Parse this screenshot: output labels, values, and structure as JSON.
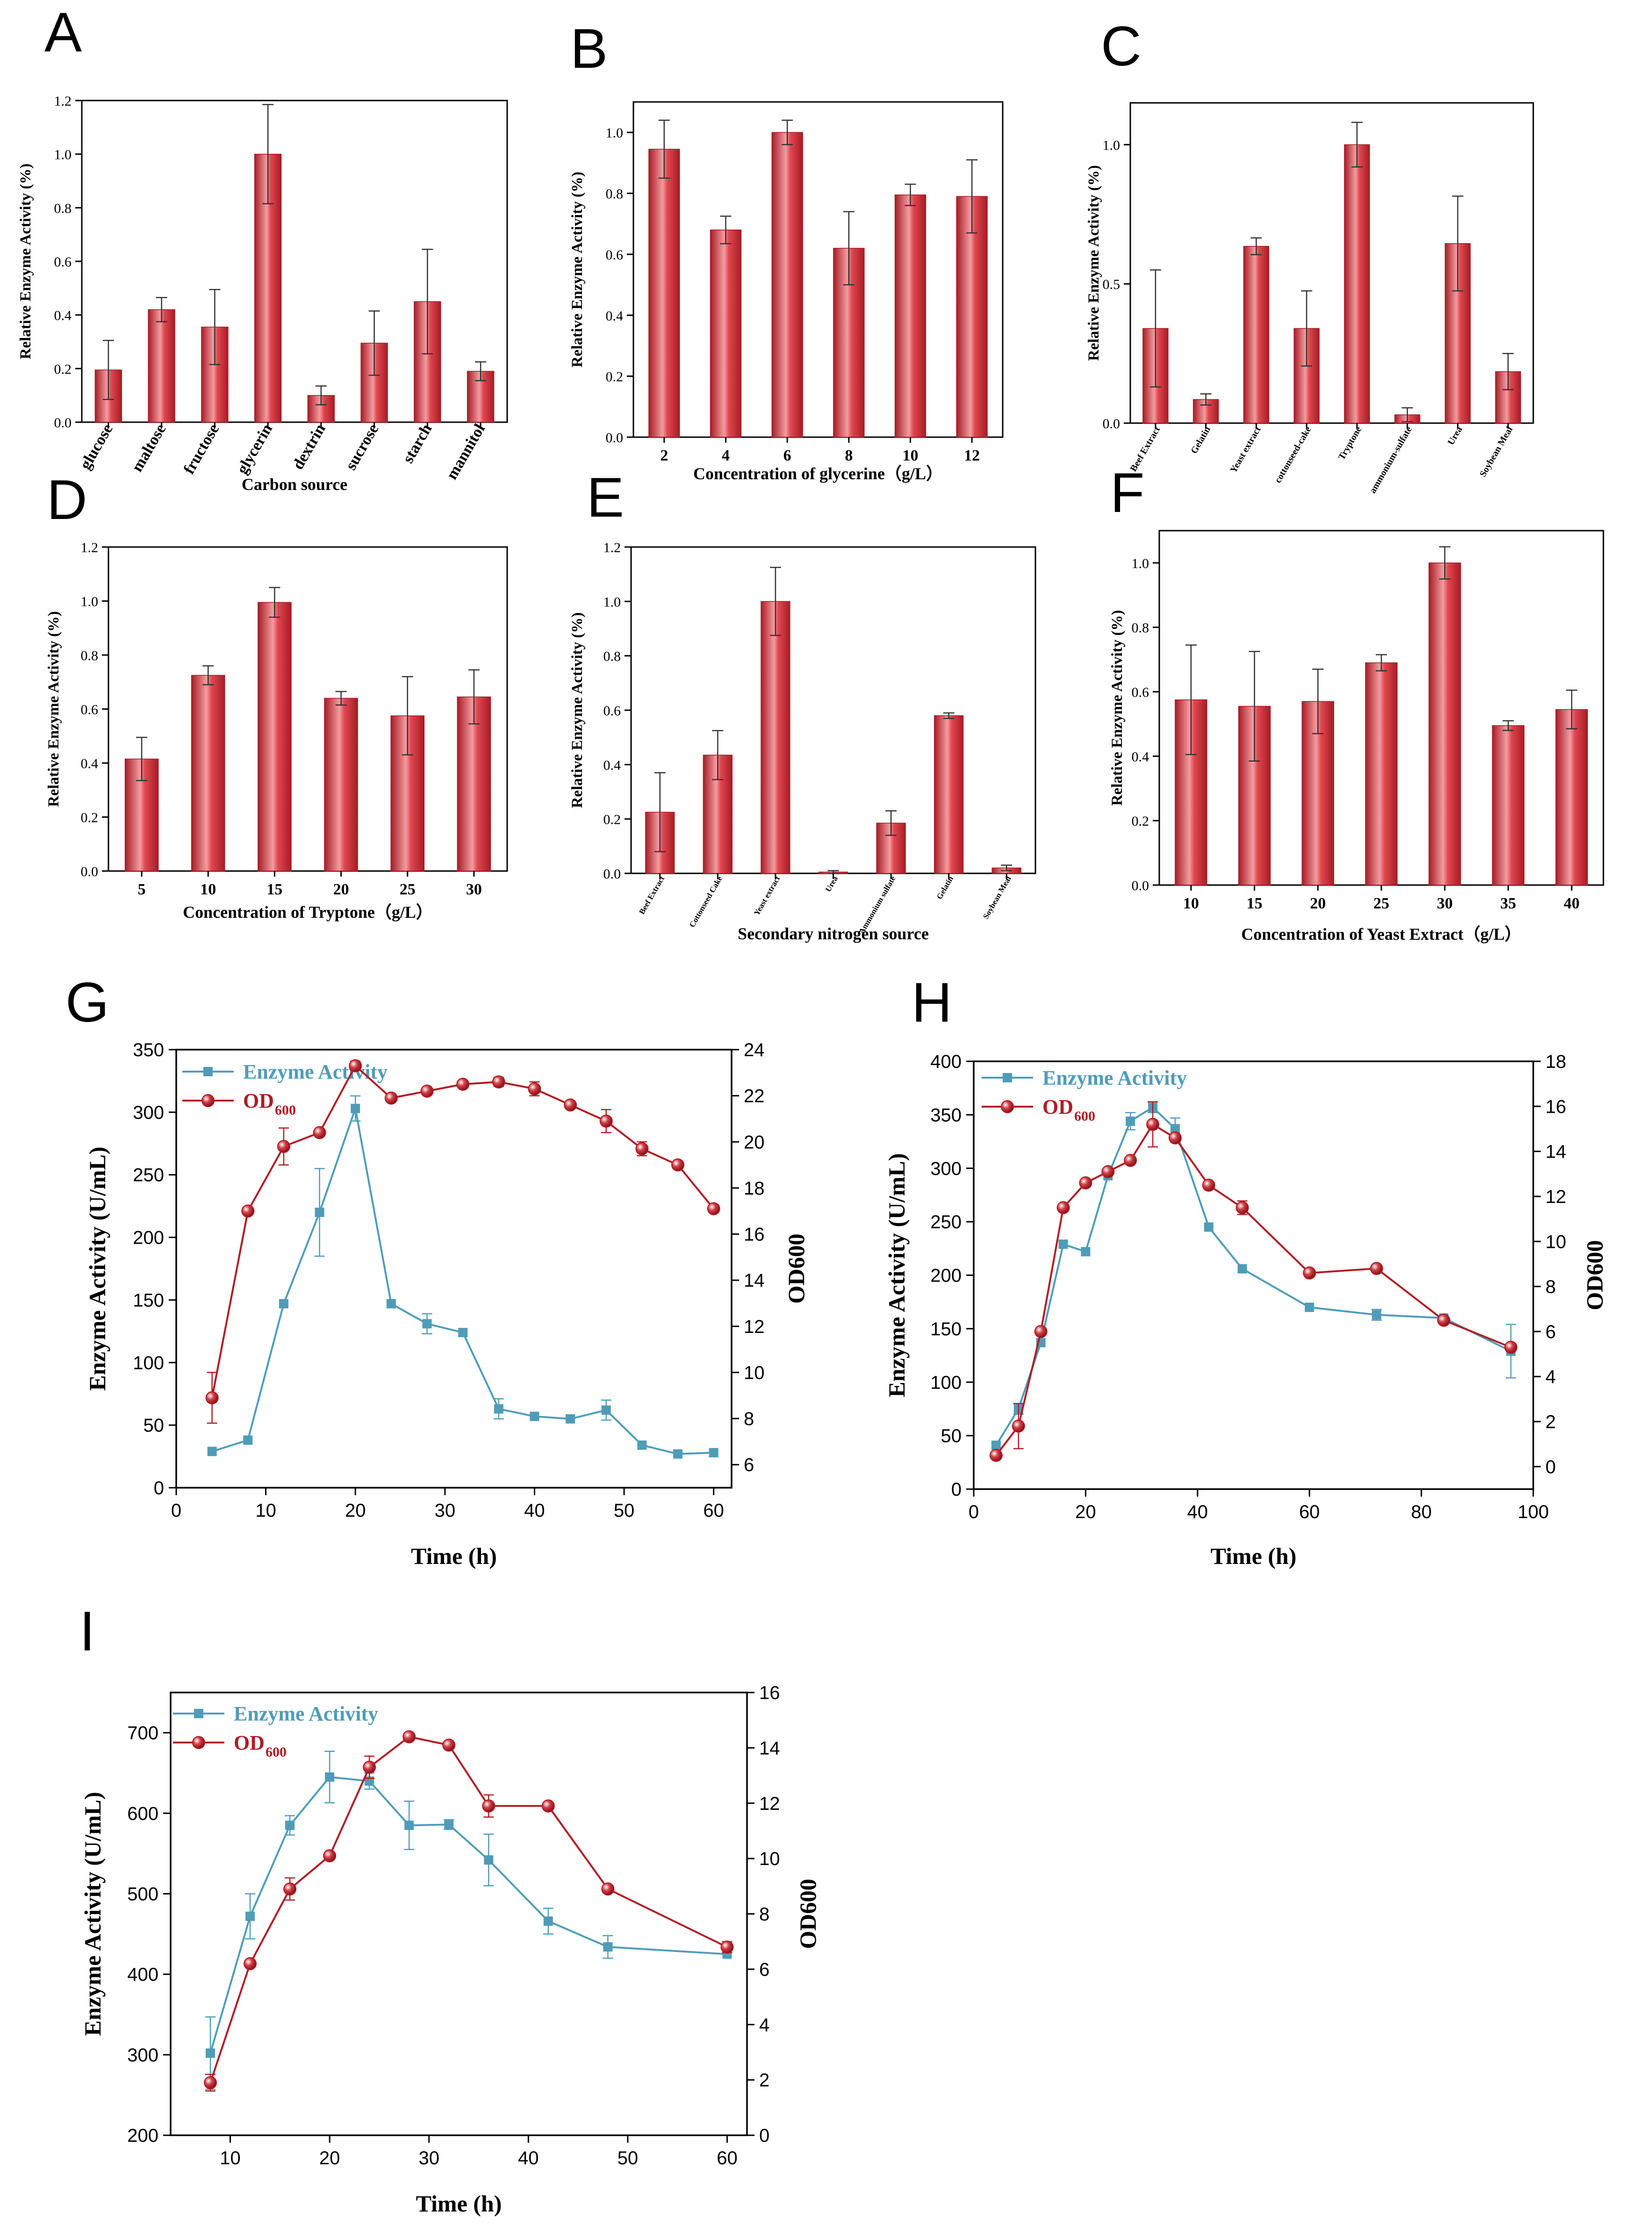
{
  "colors": {
    "bar": "#e0474f",
    "bar_dark": "#a71c26",
    "bar_light": "#f39ca0",
    "enzyme": "#4f9cb8",
    "od": "#b01c24",
    "axis": "#000000"
  },
  "chart_data": [
    {
      "panel": "A",
      "type": "bar",
      "categories": [
        "glucose",
        "maltose",
        "fructose",
        "glycerin",
        "dextrin",
        "sucrose",
        "starch",
        "mannitol"
      ],
      "values": [
        0.195,
        0.42,
        0.355,
        1.0,
        0.1,
        0.295,
        0.45,
        0.19
      ],
      "errors": [
        0.11,
        0.045,
        0.14,
        0.185,
        0.035,
        0.12,
        0.195,
        0.035
      ],
      "xlabel": "Carbon source",
      "ylabel": "Relative Enzyme Activity (%)",
      "ylim": [
        0,
        1.2
      ],
      "yticks": [
        "0.0",
        "0.2",
        "0.4",
        "0.6",
        "0.8",
        "1.0",
        "1.2"
      ]
    },
    {
      "panel": "B",
      "type": "bar",
      "categories": [
        "2",
        "4",
        "6",
        "8",
        "10",
        "12"
      ],
      "values": [
        0.945,
        0.68,
        1.0,
        0.62,
        0.795,
        0.79
      ],
      "errors": [
        0.095,
        0.045,
        0.04,
        0.12,
        0.035,
        0.12
      ],
      "xlabel": "Concentration of glycerine（g/L）",
      "ylabel": "Relative Enzyme Activity (%)",
      "ylim": [
        0,
        1.1
      ],
      "yticks": [
        "0.0",
        "0.2",
        "0.4",
        "0.6",
        "0.8",
        "1.0"
      ]
    },
    {
      "panel": "C",
      "type": "bar",
      "categories": [
        "Beef Extract",
        "Gelatin",
        "Yeast extract",
        "cottonseed-cake",
        "Tryptone",
        "ammonium-sulfate",
        "Urea",
        "Soybean Meal"
      ],
      "values": [
        0.34,
        0.085,
        0.635,
        0.34,
        1.0,
        0.03,
        0.645,
        0.185
      ],
      "errors": [
        0.21,
        0.02,
        0.03,
        0.135,
        0.08,
        0.025,
        0.17,
        0.065
      ],
      "xlabel": "",
      "ylabel": "Relative Enzyme Activity (%)",
      "ylim": [
        0,
        1.15
      ],
      "yticks": [
        "0.0",
        "0.5",
        "1.0"
      ]
    },
    {
      "panel": "D",
      "type": "bar",
      "categories": [
        "5",
        "10",
        "15",
        "20",
        "25",
        "30"
      ],
      "values": [
        0.415,
        0.725,
        0.995,
        0.64,
        0.575,
        0.645
      ],
      "errors": [
        0.08,
        0.035,
        0.055,
        0.025,
        0.145,
        0.1
      ],
      "xlabel": "Concentration of  Tryptone（g/L）",
      "ylabel": "Relative Enzyme Activity (%)",
      "ylim": [
        0,
        1.2
      ],
      "yticks": [
        "0.0",
        "0.2",
        "0.4",
        "0.6",
        "0.8",
        "1.0",
        "1.2"
      ]
    },
    {
      "panel": "E",
      "type": "bar",
      "categories": [
        "Beef Extract",
        "Cottonseed Cake",
        "Yeast extract",
        "Urea",
        "Ammonium sulfate",
        "Gelatin",
        "Soybean Meal"
      ],
      "values": [
        0.225,
        0.435,
        1.0,
        0.005,
        0.185,
        0.58,
        0.02
      ],
      "errors": [
        0.145,
        0.09,
        0.125,
        0.005,
        0.045,
        0.01,
        0.01
      ],
      "xlabel": "Secondary nitrogen source",
      "ylabel": "Relative Enzyme Activity (%)",
      "ylim": [
        0,
        1.2
      ],
      "yticks": [
        "0.0",
        "0.2",
        "0.4",
        "0.6",
        "0.8",
        "1.0",
        "1.2"
      ]
    },
    {
      "panel": "F",
      "type": "bar",
      "categories": [
        "10",
        "15",
        "20",
        "25",
        "30",
        "35",
        "40"
      ],
      "values": [
        0.575,
        0.555,
        0.57,
        0.69,
        1.0,
        0.495,
        0.545
      ],
      "errors": [
        0.17,
        0.17,
        0.1,
        0.025,
        0.05,
        0.015,
        0.06
      ],
      "xlabel": "Concentration of  Yeast Extract（g/L）",
      "ylabel": "Relative Enzyme Activity (%)",
      "ylim": [
        0,
        1.1
      ],
      "yticks": [
        "0.0",
        "0.2",
        "0.4",
        "0.6",
        "0.8",
        "1.0"
      ]
    },
    {
      "panel": "G",
      "type": "line",
      "xlabel": "Time (h)",
      "ylabel": "Enzyme Activity (U/mL)",
      "y2label": "OD600",
      "xlim": [
        0,
        62
      ],
      "xticks": [
        0,
        10,
        20,
        30,
        40,
        50,
        60
      ],
      "ylim": [
        0,
        350
      ],
      "yticks": [
        0,
        50,
        100,
        150,
        200,
        250,
        300,
        350
      ],
      "y2lim": [
        5,
        24
      ],
      "y2ticks": [
        6,
        8,
        10,
        12,
        14,
        16,
        18,
        20,
        22,
        24
      ],
      "series": [
        {
          "name": "Enzyme Activity",
          "axis": "left",
          "marker": "square",
          "x": [
            4,
            8,
            12,
            16,
            20,
            24,
            28,
            32,
            36,
            40,
            44,
            48,
            52,
            56,
            60
          ],
          "y": [
            29,
            38,
            147,
            220,
            303,
            147,
            131,
            124,
            63,
            57,
            55,
            62,
            34,
            27,
            28
          ],
          "err": [
            0,
            0,
            0,
            35,
            10,
            0,
            8,
            0,
            8,
            0,
            0,
            8,
            0,
            0,
            0
          ]
        },
        {
          "name": "OD",
          "sub": "600",
          "axis": "right",
          "marker": "circle",
          "x": [
            4,
            8,
            12,
            16,
            20,
            24,
            28,
            32,
            36,
            40,
            44,
            48,
            52,
            56,
            60
          ],
          "y": [
            8.9,
            17.0,
            19.8,
            20.4,
            23.3,
            21.9,
            22.2,
            22.5,
            22.6,
            22.3,
            21.6,
            20.9,
            19.7,
            19.0,
            17.1
          ],
          "err": [
            1.1,
            0,
            0.8,
            0,
            0.2,
            0,
            0,
            0,
            0.2,
            0.3,
            0,
            0.5,
            0.3,
            0,
            0
          ]
        }
      ]
    },
    {
      "panel": "H",
      "type": "line",
      "xlabel": "Time (h)",
      "ylabel": "Enzyme Activity (U/mL)",
      "y2label": "OD600",
      "xlim": [
        0,
        100
      ],
      "xticks": [
        0,
        20,
        40,
        60,
        80,
        100
      ],
      "ylim": [
        0,
        400
      ],
      "yticks": [
        0,
        50,
        100,
        150,
        200,
        250,
        300,
        350,
        400
      ],
      "y2lim": [
        -1,
        18
      ],
      "y2ticks": [
        0,
        2,
        4,
        6,
        8,
        10,
        12,
        14,
        16,
        18
      ],
      "series": [
        {
          "name": "Enzyme Activity",
          "axis": "left",
          "marker": "square",
          "x": [
            4,
            8,
            12,
            16,
            20,
            24,
            28,
            32,
            36,
            42,
            48,
            60,
            72,
            84,
            96
          ],
          "y": [
            41,
            75,
            137,
            229,
            222,
            293,
            344,
            357,
            337,
            245,
            206,
            170,
            163,
            160,
            129
          ],
          "err": [
            0,
            5,
            0,
            0,
            0,
            0,
            8,
            5,
            10,
            0,
            0,
            0,
            5,
            0,
            25
          ]
        },
        {
          "name": "OD",
          "sub": "600",
          "axis": "right",
          "marker": "circle",
          "x": [
            4,
            8,
            12,
            16,
            20,
            24,
            28,
            32,
            36,
            42,
            48,
            60,
            72,
            84,
            96
          ],
          "y": [
            0.5,
            1.8,
            6.0,
            11.5,
            12.6,
            13.1,
            13.6,
            15.2,
            14.6,
            12.5,
            11.5,
            8.6,
            8.8,
            6.5,
            5.3
          ],
          "err": [
            0,
            1.0,
            0,
            0,
            0,
            0,
            0,
            1.0,
            0,
            0,
            0.3,
            0,
            0,
            0,
            0
          ]
        }
      ]
    },
    {
      "panel": "I",
      "type": "line",
      "xlabel": "Time (h)",
      "ylabel": "Enzyme Activity (U/mL)",
      "y2label": "OD600",
      "xlim": [
        4,
        62
      ],
      "xticks": [
        10,
        20,
        30,
        40,
        50,
        60
      ],
      "ylim": [
        200,
        750
      ],
      "yticks": [
        200,
        300,
        400,
        500,
        600,
        700
      ],
      "y2lim": [
        0,
        16
      ],
      "y2ticks": [
        0,
        2,
        4,
        6,
        8,
        10,
        12,
        14,
        16
      ],
      "series": [
        {
          "name": "Enzyme Activity",
          "axis": "left",
          "marker": "square",
          "x": [
            8,
            12,
            16,
            20,
            24,
            28,
            32,
            36,
            42,
            48,
            60
          ],
          "y": [
            302,
            472,
            585,
            645,
            640,
            585,
            586,
            542,
            466,
            434,
            425
          ],
          "err": [
            45,
            28,
            12,
            32,
            10,
            30,
            6,
            32,
            16,
            14,
            0
          ]
        },
        {
          "name": "OD",
          "sub": "600",
          "axis": "right",
          "marker": "circle",
          "x": [
            8,
            12,
            16,
            20,
            24,
            28,
            32,
            36,
            42,
            48,
            60
          ],
          "y": [
            1.9,
            6.2,
            8.9,
            10.1,
            13.3,
            14.4,
            14.1,
            11.9,
            11.9,
            8.9,
            6.8
          ],
          "err": [
            0.3,
            0,
            0.4,
            0,
            0.4,
            0.1,
            0,
            0.4,
            0,
            0,
            0.2
          ]
        }
      ]
    }
  ]
}
